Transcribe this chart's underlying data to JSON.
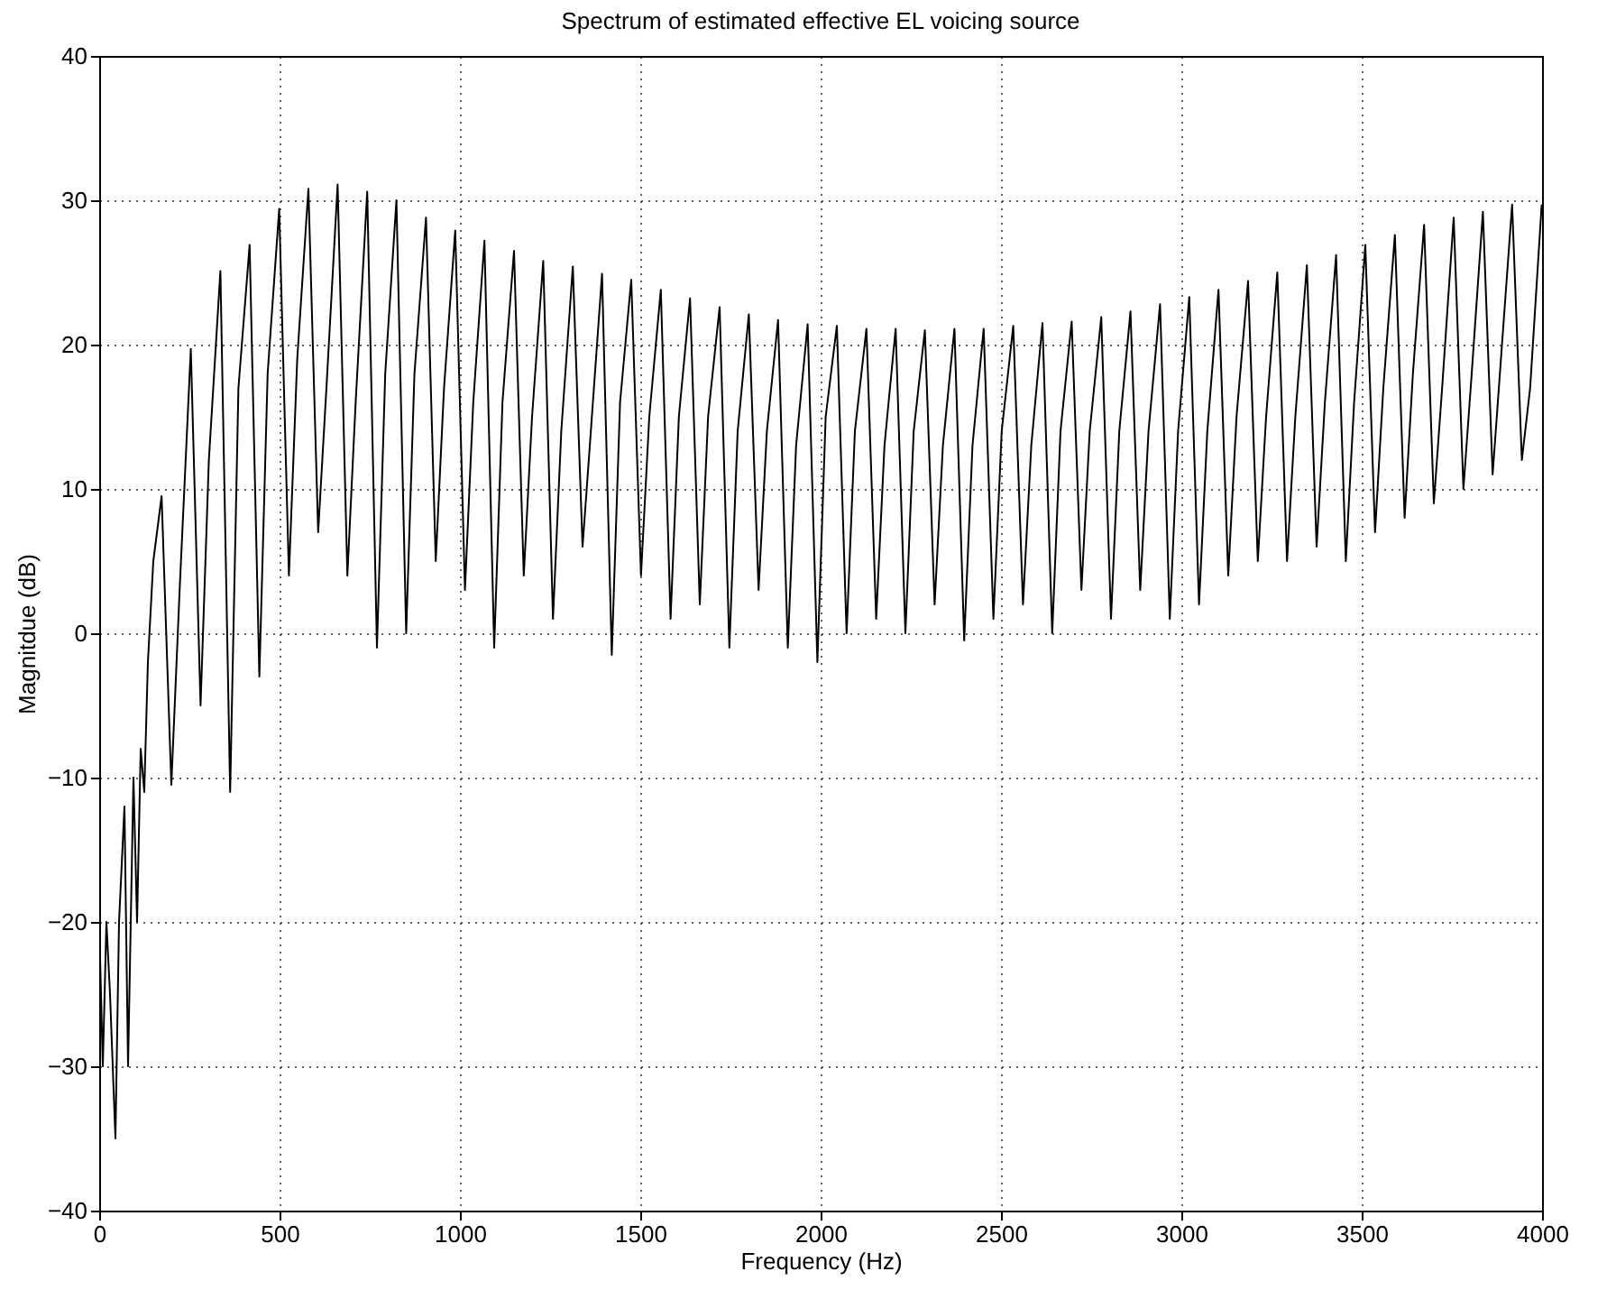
{
  "chart_data": {
    "type": "line",
    "title": "Spectrum of estimated effective EL voicing source",
    "xlabel": "Frequency (Hz)",
    "ylabel": "Magnitdue (dB)",
    "xlim": [
      0,
      4000
    ],
    "xticks": [
      0,
      500,
      1000,
      1500,
      2000,
      2500,
      3000,
      3500,
      4000
    ],
    "ylim": [
      -40,
      40
    ],
    "yticks": [
      -40,
      -30,
      -20,
      -10,
      0,
      10,
      20,
      30,
      40
    ],
    "grid": true,
    "marker": "none",
    "line_style": "solid",
    "series": [
      {
        "color": "#000000",
        "x": [
          0,
          10,
          20,
          30,
          45,
          55,
          70,
          80,
          95,
          105,
          115,
          125,
          135,
          150,
          173,
          200,
          223,
          254,
          281,
          304,
          336,
          363,
          386,
          417,
          444,
          467,
          499,
          526,
          549,
          580,
          607,
          630,
          661,
          688,
          711,
          743,
          770,
          793,
          824,
          851,
          874,
          906,
          933,
          956,
          987,
          1014,
          1037,
          1068,
          1095,
          1118,
          1150,
          1177,
          1200,
          1231,
          1258,
          1281,
          1313,
          1340,
          1363,
          1394,
          1421,
          1444,
          1475,
          1502,
          1525,
          1557,
          1584,
          1607,
          1638,
          1665,
          1688,
          1720,
          1747,
          1770,
          1801,
          1828,
          1851,
          1882,
          1909,
          1932,
          1964,
          1991,
          2014,
          2045,
          2072,
          2095,
          2127,
          2154,
          2177,
          2208,
          2235,
          2258,
          2289,
          2316,
          2339,
          2371,
          2398,
          2421,
          2452,
          2479,
          2502,
          2534,
          2561,
          2584,
          2615,
          2642,
          2665,
          2696,
          2723,
          2746,
          2778,
          2805,
          2828,
          2859,
          2886,
          2909,
          2941,
          2968,
          2991,
          3022,
          3049,
          3072,
          3103,
          3130,
          3153,
          3185,
          3212,
          3235,
          3266,
          3293,
          3316,
          3348,
          3375,
          3398,
          3429,
          3456,
          3479,
          3510,
          3537,
          3560,
          3592,
          3619,
          3642,
          3673,
          3700,
          3723,
          3755,
          3782,
          3805,
          3836,
          3863,
          3886,
          3917,
          3944,
          3967,
          3999
        ],
        "values": [
          -20,
          -30,
          -20,
          -25,
          -35,
          -20,
          -12,
          -30,
          -10,
          -20,
          -8,
          -11,
          -2,
          5,
          9.5,
          -10.5,
          3,
          19.7,
          -5,
          12,
          25.1,
          -11,
          17,
          26.9,
          -3,
          18,
          29.4,
          4,
          19,
          30.8,
          7,
          17,
          31.1,
          4,
          16,
          30.6,
          -1,
          18,
          30,
          0,
          18,
          28.8,
          5,
          17,
          27.9,
          3,
          16,
          27.2,
          -1,
          16,
          26.5,
          4,
          15,
          25.8,
          1,
          14,
          25.4,
          6,
          14,
          24.9,
          -1.5,
          16,
          24.5,
          4,
          15,
          23.8,
          1,
          15,
          23.2,
          2,
          15,
          22.6,
          -1,
          14,
          22.1,
          3,
          14,
          21.7,
          -1,
          13,
          21.4,
          -2,
          15,
          21.3,
          0,
          14,
          21.1,
          1,
          13,
          21.1,
          0,
          14,
          21,
          2,
          13,
          21.1,
          -0.5,
          13,
          21.1,
          1,
          14,
          21.3,
          2,
          13,
          21.5,
          0,
          14,
          21.6,
          3,
          14,
          21.9,
          1,
          14,
          22.3,
          3,
          14,
          22.8,
          1,
          14,
          23.3,
          2,
          14,
          23.8,
          4,
          15,
          24.4,
          5,
          15,
          25,
          5,
          15,
          25.5,
          6,
          16,
          26.2,
          5,
          16,
          26.9,
          7,
          17,
          27.6,
          8,
          18,
          28.3,
          9,
          17,
          28.8,
          10,
          18,
          29.2,
          11,
          19,
          29.7,
          12,
          17,
          29.7
        ]
      }
    ]
  }
}
